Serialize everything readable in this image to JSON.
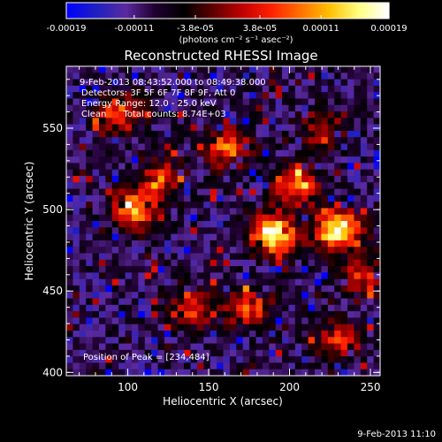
{
  "colorbar": {
    "tick_labels": [
      "-0.00019",
      "-0.00011",
      "-3.8e-05",
      "3.8e-05",
      "0.00011",
      "0.00019"
    ],
    "tick_values": [
      -0.00019,
      -0.00011,
      -3.8e-05,
      3.8e-05,
      0.00011,
      0.00019
    ],
    "range": [
      -0.00019,
      0.00019
    ],
    "unit_label": "(photons cm⁻² s⁻¹ asec⁻²)"
  },
  "chart_data": {
    "type": "heatmap",
    "title": "Reconstructed RHESSI Image",
    "xlabel": "Heliocentric X (arcsec)",
    "ylabel": "Heliocentric Y (arcsec)",
    "xlim": [
      62,
      256
    ],
    "ylim": [
      398,
      588
    ],
    "x_ticks": [
      100,
      150,
      200,
      250
    ],
    "y_ticks": [
      400,
      450,
      500,
      550
    ],
    "annotations": [
      "9-Feb-2013 08:43:52.000 to 08:49:38.000",
      "Detectors: 3F 5F 6F 7F 8F 9F, Att 0",
      "Energy Range: 12.0 - 25.0 keV",
      "Clean      Total counts: 8.74E+03"
    ],
    "peak_label": "Position of Peak = [234,484]",
    "peak": [
      234,
      484
    ],
    "bright_sources": [
      {
        "x": 190,
        "y": 485,
        "level": 1.0
      },
      {
        "x": 230,
        "y": 488,
        "level": 0.95
      },
      {
        "x": 105,
        "y": 500,
        "level": 0.7
      },
      {
        "x": 162,
        "y": 538,
        "level": 0.6
      },
      {
        "x": 205,
        "y": 515,
        "level": 0.65
      },
      {
        "x": 95,
        "y": 560,
        "level": 0.55
      },
      {
        "x": 175,
        "y": 440,
        "level": 0.55
      },
      {
        "x": 140,
        "y": 440,
        "level": 0.5
      },
      {
        "x": 230,
        "y": 420,
        "level": 0.45
      },
      {
        "x": 245,
        "y": 460,
        "level": 0.45
      },
      {
        "x": 120,
        "y": 520,
        "level": 0.45
      },
      {
        "x": 220,
        "y": 550,
        "level": 0.4
      }
    ],
    "colormap": [
      "#0000ff",
      "#2020c0",
      "#5a2aa0",
      "#200030",
      "#000000",
      "#600000",
      "#c00000",
      "#ff2000",
      "#ff7000",
      "#ffc000",
      "#ffff80",
      "#ffffff"
    ]
  },
  "footer": {
    "timestamp": "9-Feb-2013 11:10"
  }
}
